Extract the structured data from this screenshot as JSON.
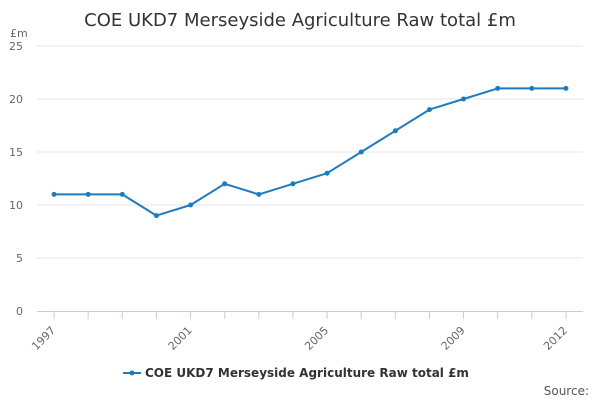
{
  "chart_data": {
    "type": "line",
    "title": "COE UKD7 Merseyside Agriculture Raw total £m",
    "ylabel": "£m",
    "xlabel": "",
    "ylim": [
      0,
      25
    ],
    "yticks": [
      0,
      5,
      10,
      15,
      20,
      25
    ],
    "xlim": [
      1997,
      2012
    ],
    "xticks": [
      1997,
      2001,
      2005,
      2009,
      2012
    ],
    "grid": true,
    "legend_position": "bottom-center",
    "series": [
      {
        "name": "COE UKD7 Merseyside Agriculture Raw total £m",
        "color": "#1f7bbf",
        "x": [
          1997,
          1998,
          1999,
          2000,
          2001,
          2002,
          2003,
          2004,
          2005,
          2006,
          2007,
          2008,
          2009,
          2010,
          2011,
          2012
        ],
        "values": [
          11,
          11,
          11,
          9,
          10,
          12,
          11,
          12,
          13,
          15,
          17,
          19,
          20,
          21,
          21,
          21
        ]
      }
    ]
  },
  "footer": {
    "source_label": "Source:"
  }
}
